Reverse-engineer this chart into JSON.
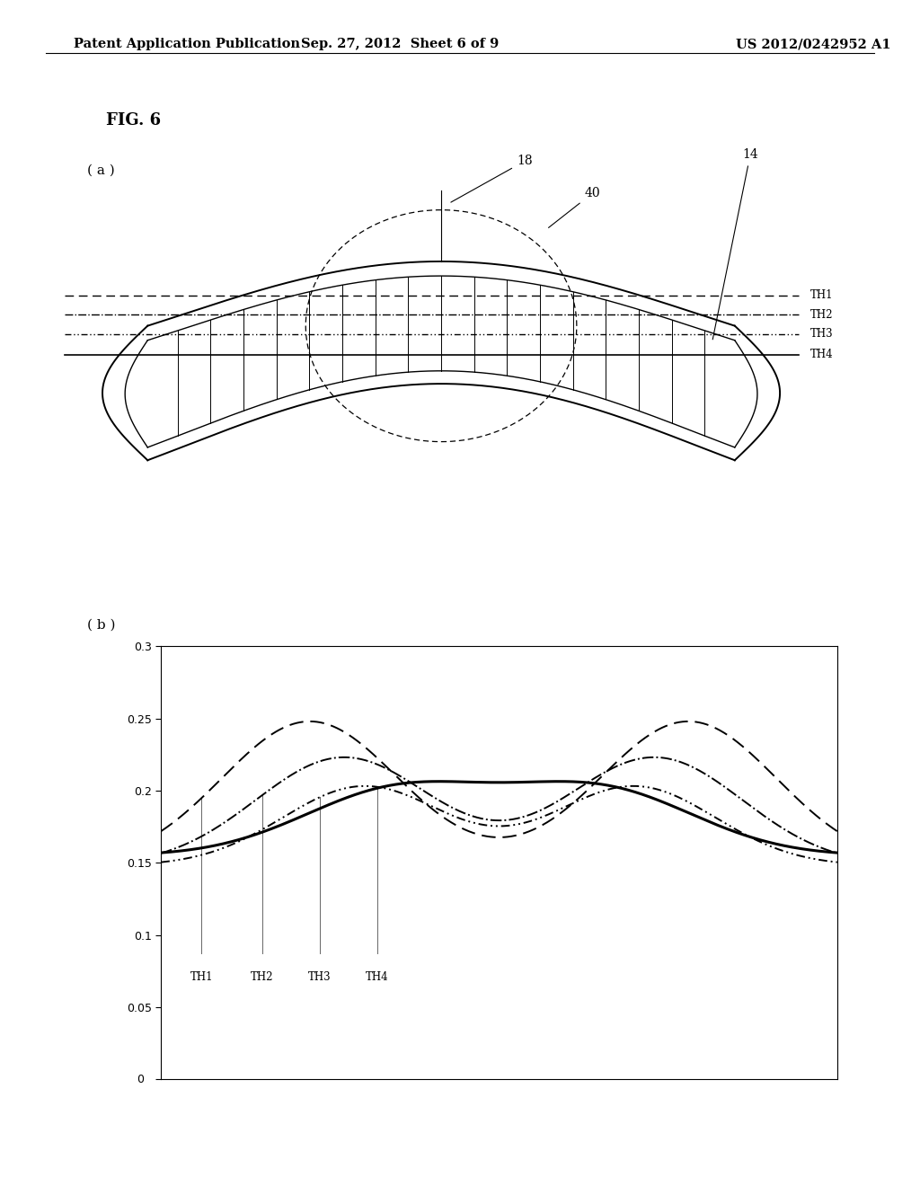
{
  "header_left": "Patent Application Publication",
  "header_center": "Sep. 27, 2012  Sheet 6 of 9",
  "header_right": "US 2012/0242952 A1",
  "fig_label": "FIG. 6",
  "sub_a_label": "( a )",
  "sub_b_label": "( b )",
  "th_labels": [
    "TH1",
    "TH2",
    "TH3",
    "TH4"
  ],
  "ref_numbers": [
    "18",
    "40",
    "14"
  ],
  "graph_yticks": [
    0,
    0.05,
    0.1,
    0.15,
    0.2,
    0.25,
    0.3
  ],
  "graph_ylim": [
    0,
    0.3
  ],
  "bg_color": "#ffffff",
  "line_color": "#000000"
}
